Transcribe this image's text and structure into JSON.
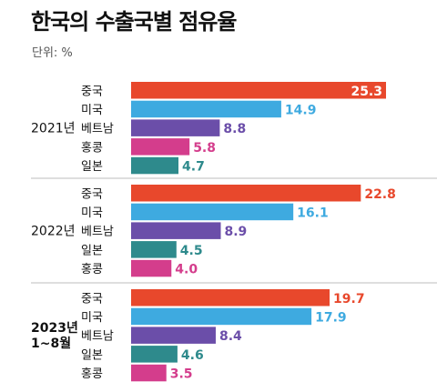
{
  "title": "한국의 수출국별 점유율",
  "unit_label": "단위: %",
  "chart_data": {
    "type": "bar",
    "orientation": "horizontal",
    "title": "한국의 수출국별 점유율",
    "unit": "단위: %",
    "xlim": [
      0,
      25.3
    ],
    "groups": [
      {
        "label": "2021년",
        "bars": [
          {
            "name": "중국",
            "value": 25.3,
            "color": "#E8482C",
            "label_inside": true
          },
          {
            "name": "미국",
            "value": 14.9,
            "color": "#3EAAE0"
          },
          {
            "name": "베트남",
            "value": 8.8,
            "color": "#6B4EA9"
          },
          {
            "name": "홍콩",
            "value": 5.8,
            "color": "#D43D8C"
          },
          {
            "name": "일본",
            "value": 4.7,
            "color": "#2E8A8C"
          }
        ]
      },
      {
        "label": "2022년",
        "bars": [
          {
            "name": "중국",
            "value": 22.8,
            "color": "#E8482C"
          },
          {
            "name": "미국",
            "value": 16.1,
            "color": "#3EAAE0"
          },
          {
            "name": "베트남",
            "value": 8.9,
            "color": "#6B4EA9"
          },
          {
            "name": "일본",
            "value": 4.5,
            "color": "#2E8A8C"
          },
          {
            "name": "홍콩",
            "value": 4.0,
            "color": "#D43D8C"
          }
        ]
      },
      {
        "label": "2023년 1~8월",
        "label_lines": [
          "2023년",
          "1~8월"
        ],
        "bold": true,
        "bars": [
          {
            "name": "중국",
            "value": 19.7,
            "color": "#E8482C"
          },
          {
            "name": "미국",
            "value": 17.9,
            "color": "#3EAAE0"
          },
          {
            "name": "베트남",
            "value": 8.4,
            "color": "#6B4EA9"
          },
          {
            "name": "일본",
            "value": 4.6,
            "color": "#2E8A8C"
          },
          {
            "name": "홍콩",
            "value": 3.5,
            "color": "#D43D8C"
          }
        ]
      }
    ]
  }
}
